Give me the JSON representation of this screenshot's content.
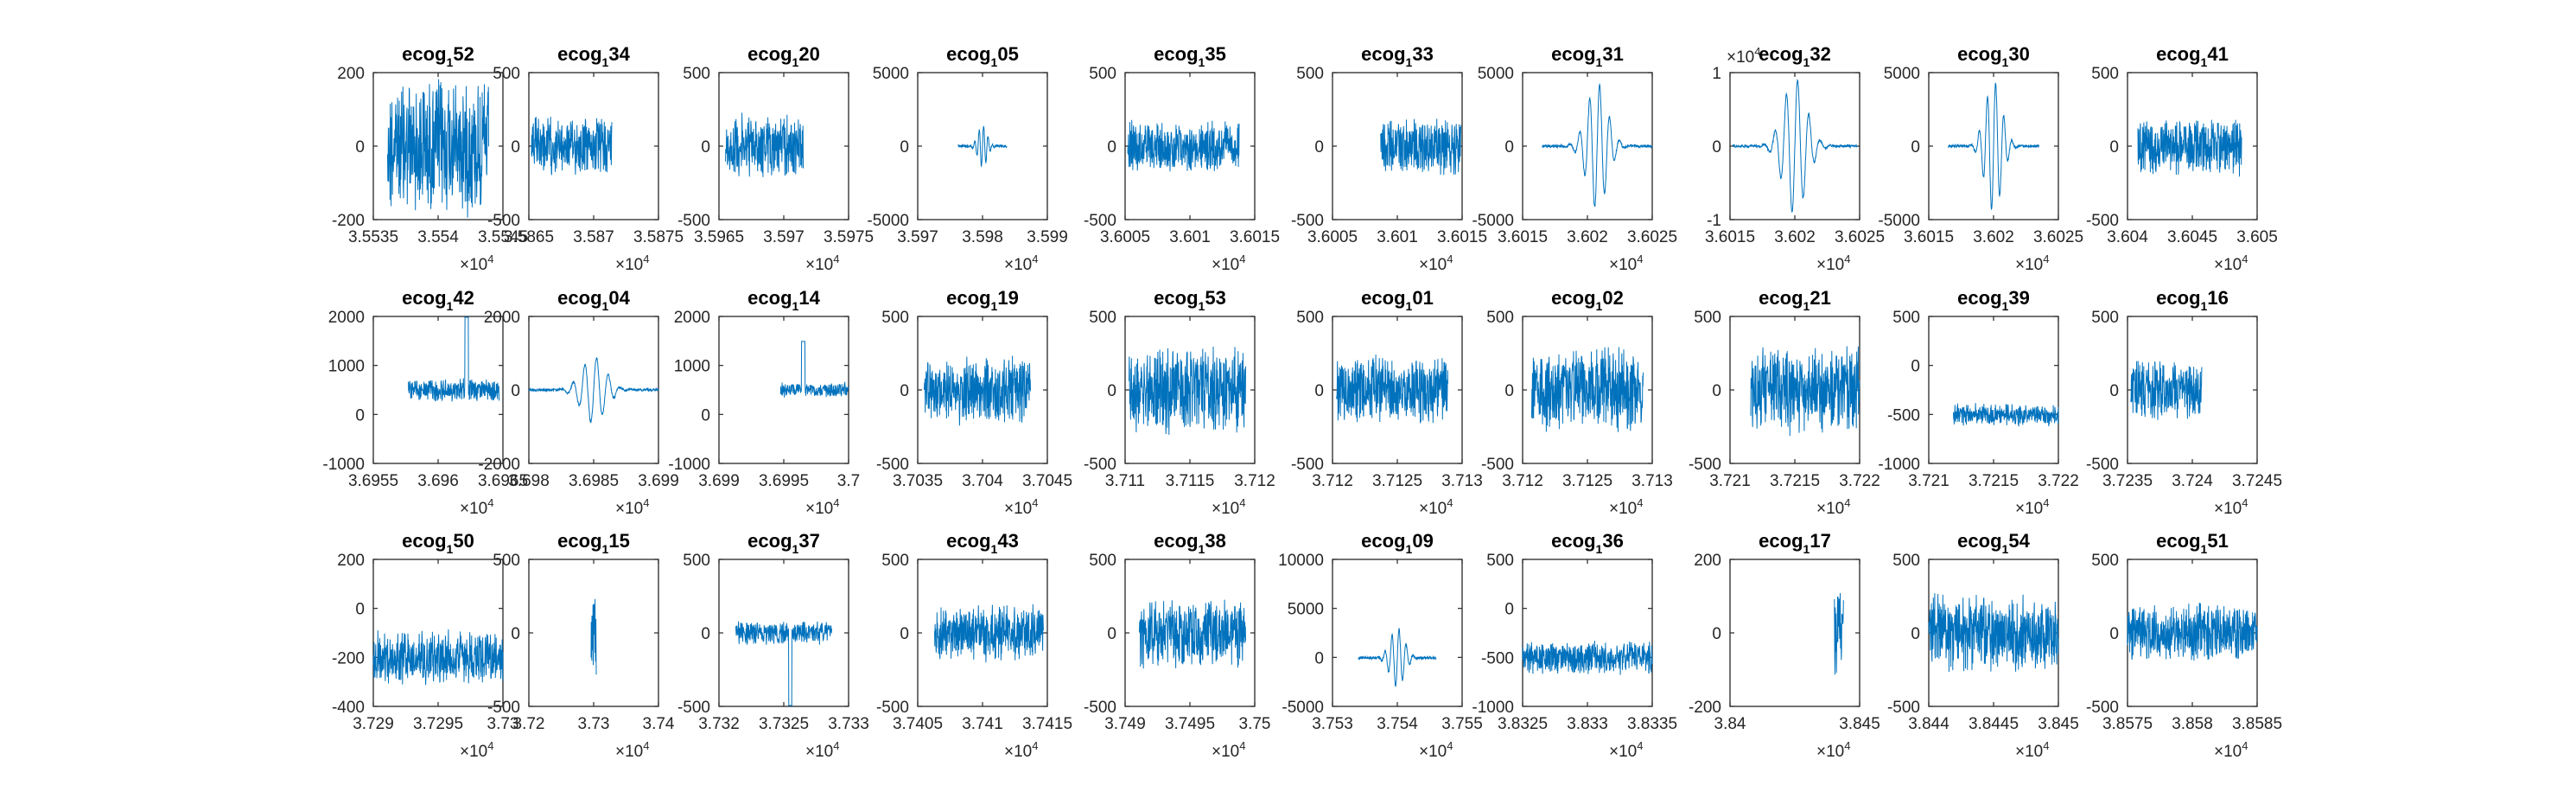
{
  "figure": {
    "background": "#ffffff",
    "axis_color": "#262626",
    "line_color": "#0072BD"
  },
  "chart_data": [
    {
      "type": "line",
      "title": "ecog",
      "title_sub": "1",
      "title_num": "52",
      "xticks": [
        "3.5535",
        "3.554",
        "3.5545"
      ],
      "yticks": [
        "200",
        "0",
        "-200"
      ],
      "ylim": [
        -200,
        200
      ],
      "x_exponent": "×10",
      "x_exp_power": "4",
      "y_exponent": "",
      "y_exp_power": "",
      "signal": {
        "center": 0.5,
        "width": 0.78,
        "amp": 0.72,
        "style": "noise"
      }
    },
    {
      "type": "line",
      "title": "ecog",
      "title_sub": "1",
      "title_num": "34",
      "xticks": [
        "3.5865",
        "3.587",
        "3.5875"
      ],
      "yticks": [
        "500",
        "0",
        "-500"
      ],
      "ylim": [
        -500,
        500
      ],
      "x_exponent": "×10",
      "x_exp_power": "4",
      "y_exponent": "",
      "y_exp_power": "",
      "signal": {
        "center": 0.33,
        "width": 0.62,
        "amp": 0.3,
        "style": "noise"
      }
    },
    {
      "type": "line",
      "title": "ecog",
      "title_sub": "1",
      "title_num": "20",
      "xticks": [
        "3.5965",
        "3.597",
        "3.5975"
      ],
      "yticks": [
        "500",
        "0",
        "-500"
      ],
      "ylim": [
        -500,
        500
      ],
      "x_exponent": "×10",
      "x_exp_power": "4",
      "y_exponent": "",
      "y_exp_power": "",
      "signal": {
        "center": 0.35,
        "width": 0.6,
        "amp": 0.33,
        "style": "noise"
      }
    },
    {
      "type": "line",
      "title": "ecog",
      "title_sub": "1",
      "title_num": "05",
      "xticks": [
        "3.597",
        "3.598",
        "3.599"
      ],
      "yticks": [
        "5000",
        "0",
        "-5000"
      ],
      "ylim": [
        -5000,
        5000
      ],
      "x_exponent": "×10",
      "x_exp_power": "4",
      "y_exponent": "",
      "y_exp_power": "",
      "signal": {
        "center": 0.5,
        "width": 0.38,
        "amp": 0.28,
        "style": "burst"
      }
    },
    {
      "type": "line",
      "title": "ecog",
      "title_sub": "1",
      "title_num": "35",
      "xticks": [
        "3.6005",
        "3.601",
        "3.6015"
      ],
      "yticks": [
        "500",
        "0",
        "-500"
      ],
      "ylim": [
        -500,
        500
      ],
      "x_exponent": "×10",
      "x_exp_power": "4",
      "y_exponent": "",
      "y_exp_power": "",
      "signal": {
        "center": 0.45,
        "width": 0.86,
        "amp": 0.27,
        "style": "noise"
      }
    },
    {
      "type": "line",
      "title": "ecog",
      "title_sub": "1",
      "title_num": "33",
      "xticks": [
        "3.6005",
        "3.601",
        "3.6015"
      ],
      "yticks": [
        "500",
        "0",
        "-500"
      ],
      "ylim": [
        -500,
        500
      ],
      "x_exponent": "×10",
      "x_exp_power": "4",
      "y_exponent": "",
      "y_exp_power": "",
      "signal": {
        "center": 0.68,
        "width": 0.62,
        "amp": 0.3,
        "style": "noise"
      }
    },
    {
      "type": "line",
      "title": "ecog",
      "title_sub": "1",
      "title_num": "31",
      "xticks": [
        "3.6015",
        "3.602",
        "3.6025"
      ],
      "yticks": [
        "5000",
        "0",
        "-5000"
      ],
      "ylim": [
        -5000,
        5000
      ],
      "x_exponent": "×10",
      "x_exp_power": "4",
      "y_exponent": "",
      "y_exp_power": "",
      "signal": {
        "center": 0.65,
        "width": 1.0,
        "amp": 0.85,
        "style": "burst"
      }
    },
    {
      "type": "line",
      "title": "ecog",
      "title_sub": "1",
      "title_num": "32",
      "xticks": [
        "3.6015",
        "3.602",
        "3.6025"
      ],
      "yticks": [
        "1",
        "0",
        "-1"
      ],
      "ylim": [
        -1,
        1
      ],
      "x_exponent": "×10",
      "x_exp_power": "4",
      "y_exponent": "×10",
      "y_exp_power": "4",
      "signal": {
        "center": 0.5,
        "width": 0.96,
        "amp": 0.92,
        "style": "burst"
      }
    },
    {
      "type": "line",
      "title": "ecog",
      "title_sub": "1",
      "title_num": "30",
      "xticks": [
        "3.6015",
        "3.602",
        "3.6025"
      ],
      "yticks": [
        "5000",
        "0",
        "-5000"
      ],
      "ylim": [
        -5000,
        5000
      ],
      "x_exponent": "×10",
      "x_exp_power": "4",
      "y_exponent": "",
      "y_exp_power": "",
      "signal": {
        "center": 0.5,
        "width": 0.7,
        "amp": 0.88,
        "style": "burst"
      }
    },
    {
      "type": "line",
      "title": "ecog",
      "title_sub": "1",
      "title_num": "41",
      "xticks": [
        "3.604",
        "3.6045",
        "3.605"
      ],
      "yticks": [
        "500",
        "0",
        "-500"
      ],
      "ylim": [
        -500,
        500
      ],
      "x_exponent": "×10",
      "x_exp_power": "4",
      "y_exponent": "",
      "y_exp_power": "",
      "signal": {
        "center": 0.48,
        "width": 0.8,
        "amp": 0.3,
        "style": "noise"
      }
    },
    {
      "type": "line",
      "title": "ecog",
      "title_sub": "1",
      "title_num": "42",
      "xticks": [
        "3.6955",
        "3.696",
        "3.6965"
      ],
      "yticks": [
        "2000",
        "1000",
        "0",
        "-1000"
      ],
      "ylim": [
        -1000,
        2000
      ],
      "x_exponent": "×10",
      "x_exp_power": "4",
      "y_exponent": "",
      "y_exp_power": "",
      "signal": {
        "center": 0.62,
        "width": 0.7,
        "amp": 0.12,
        "style": "spike",
        "spike_pos": 0.72,
        "spike_amp": 0.55
      }
    },
    {
      "type": "line",
      "title": "ecog",
      "title_sub": "1",
      "title_num": "04",
      "xticks": [
        "3.698",
        "3.6985",
        "3.699"
      ],
      "yticks": [
        "2000",
        "0",
        "-2000"
      ],
      "ylim": [
        -2000,
        2000
      ],
      "x_exponent": "×10",
      "x_exp_power": "4",
      "y_exponent": "",
      "y_exp_power": "",
      "signal": {
        "center": 0.5,
        "width": 1.0,
        "amp": 0.45,
        "style": "burst"
      }
    },
    {
      "type": "line",
      "title": "ecog",
      "title_sub": "1",
      "title_num": "14",
      "xticks": [
        "3.699",
        "3.6995",
        "3.7"
      ],
      "yticks": [
        "2000",
        "1000",
        "0",
        "-1000"
      ],
      "ylim": [
        -1000,
        2000
      ],
      "x_exponent": "×10",
      "x_exp_power": "4",
      "y_exponent": "",
      "y_exp_power": "",
      "signal": {
        "center": 0.75,
        "width": 0.55,
        "amp": 0.08,
        "style": "spike",
        "spike_pos": 0.65,
        "spike_amp": 0.33
      }
    },
    {
      "type": "line",
      "title": "ecog",
      "title_sub": "1",
      "title_num": "19",
      "xticks": [
        "3.7035",
        "3.704",
        "3.7045"
      ],
      "yticks": [
        "500",
        "0",
        "-500"
      ],
      "ylim": [
        -500,
        500
      ],
      "x_exponent": "×10",
      "x_exp_power": "4",
      "y_exponent": "",
      "y_exp_power": "",
      "signal": {
        "center": 0.46,
        "width": 0.82,
        "amp": 0.35,
        "style": "noise"
      }
    },
    {
      "type": "line",
      "title": "ecog",
      "title_sub": "1",
      "title_num": "53",
      "xticks": [
        "3.711",
        "3.7115",
        "3.712"
      ],
      "yticks": [
        "500",
        "0",
        "-500"
      ],
      "ylim": [
        -500,
        500
      ],
      "x_exponent": "×10",
      "x_exp_power": "4",
      "y_exponent": "",
      "y_exp_power": "",
      "signal": {
        "center": 0.48,
        "width": 0.9,
        "amp": 0.45,
        "style": "noise"
      }
    },
    {
      "type": "line",
      "title": "ecog",
      "title_sub": "1",
      "title_num": "01",
      "xticks": [
        "3.712",
        "3.7125",
        "3.713"
      ],
      "yticks": [
        "500",
        "0",
        "-500"
      ],
      "ylim": [
        -500,
        500
      ],
      "x_exponent": "×10",
      "x_exp_power": "4",
      "y_exponent": "",
      "y_exp_power": "",
      "signal": {
        "center": 0.46,
        "width": 0.86,
        "amp": 0.35,
        "style": "noise"
      }
    },
    {
      "type": "line",
      "title": "ecog",
      "title_sub": "1",
      "title_num": "02",
      "xticks": [
        "3.712",
        "3.7125",
        "3.713"
      ],
      "yticks": [
        "500",
        "0",
        "-500"
      ],
      "ylim": [
        -500,
        500
      ],
      "x_exponent": "×10",
      "x_exp_power": "4",
      "y_exponent": "",
      "y_exp_power": "",
      "signal": {
        "center": 0.5,
        "width": 0.86,
        "amp": 0.45,
        "style": "noise"
      }
    },
    {
      "type": "line",
      "title": "ecog",
      "title_sub": "1",
      "title_num": "21",
      "xticks": [
        "3.721",
        "3.7215",
        "3.722"
      ],
      "yticks": [
        "500",
        "0",
        "-500"
      ],
      "ylim": [
        -500,
        500
      ],
      "x_exponent": "×10",
      "x_exp_power": "4",
      "y_exponent": "",
      "y_exp_power": "",
      "signal": {
        "center": 0.58,
        "width": 0.84,
        "amp": 0.45,
        "style": "noise"
      }
    },
    {
      "type": "line",
      "title": "ecog",
      "title_sub": "1",
      "title_num": "39",
      "xticks": [
        "3.721",
        "3.7215",
        "3.722"
      ],
      "yticks": [
        "500",
        "0",
        "-500",
        "-1000"
      ],
      "ylim": [
        -1000,
        500
      ],
      "x_exponent": "×10",
      "x_exp_power": "4",
      "y_exponent": "",
      "y_exp_power": "",
      "signal": {
        "center": 0.6,
        "width": 0.82,
        "amp": 0.12,
        "style": "noise",
        "offset": 0.67
      }
    },
    {
      "type": "line",
      "title": "ecog",
      "title_sub": "1",
      "title_num": "16",
      "xticks": [
        "3.7235",
        "3.724",
        "3.7245"
      ],
      "yticks": [
        "500",
        "0",
        "-500"
      ],
      "ylim": [
        -500,
        500
      ],
      "x_exponent": "×10",
      "x_exp_power": "4",
      "y_exponent": "",
      "y_exp_power": "",
      "signal": {
        "center": 0.3,
        "width": 0.55,
        "amp": 0.3,
        "style": "noise"
      }
    },
    {
      "type": "line",
      "title": "ecog",
      "title_sub": "1",
      "title_num": "50",
      "xticks": [
        "3.729",
        "3.7295",
        "3.73"
      ],
      "yticks": [
        "200",
        "0",
        "-200",
        "-400"
      ],
      "ylim": [
        -400,
        200
      ],
      "x_exponent": "×10",
      "x_exp_power": "4",
      "y_exponent": "",
      "y_exp_power": "",
      "signal": {
        "center": 0.5,
        "width": 1.0,
        "amp": 0.28,
        "style": "noise",
        "offset": 0.67
      }
    },
    {
      "type": "line",
      "title": "ecog",
      "title_sub": "1",
      "title_num": "15",
      "xticks": [
        "3.72",
        "3.73",
        "3.74"
      ],
      "yticks": [
        "500",
        "0",
        "-500"
      ],
      "ylim": [
        -500,
        500
      ],
      "x_exponent": "×10",
      "x_exp_power": "4",
      "y_exponent": "",
      "y_exp_power": "",
      "signal": {
        "center": 0.5,
        "width": 0.04,
        "amp": 0.45,
        "style": "noise"
      }
    },
    {
      "type": "line",
      "title": "ecog",
      "title_sub": "1",
      "title_num": "37",
      "xticks": [
        "3.732",
        "3.7325",
        "3.733"
      ],
      "yticks": [
        "500",
        "0",
        "-500"
      ],
      "ylim": [
        -500,
        500
      ],
      "x_exponent": "×10",
      "x_exp_power": "4",
      "y_exponent": "",
      "y_exp_power": "",
      "signal": {
        "center": 0.5,
        "width": 0.74,
        "amp": 0.12,
        "style": "spike",
        "spike_pos": 0.55,
        "spike_amp": -0.55
      }
    },
    {
      "type": "line",
      "title": "ecog",
      "title_sub": "1",
      "title_num": "43",
      "xticks": [
        "3.7405",
        "3.741",
        "3.7415"
      ],
      "yticks": [
        "500",
        "0",
        "-500"
      ],
      "ylim": [
        -500,
        500
      ],
      "x_exponent": "×10",
      "x_exp_power": "4",
      "y_exponent": "",
      "y_exp_power": "",
      "signal": {
        "center": 0.55,
        "width": 0.84,
        "amp": 0.3,
        "style": "noise"
      }
    },
    {
      "type": "line",
      "title": "ecog",
      "title_sub": "1",
      "title_num": "38",
      "xticks": [
        "3.749",
        "3.7495",
        "3.75"
      ],
      "yticks": [
        "500",
        "0",
        "-500"
      ],
      "ylim": [
        -500,
        500
      ],
      "x_exponent": "×10",
      "x_exp_power": "4",
      "y_exponent": "",
      "y_exp_power": "",
      "signal": {
        "center": 0.52,
        "width": 0.82,
        "amp": 0.35,
        "style": "noise"
      }
    },
    {
      "type": "line",
      "title": "ecog",
      "title_sub": "1",
      "title_num": "09",
      "xticks": [
        "3.753",
        "3.754",
        "3.755"
      ],
      "yticks": [
        "10000",
        "5000",
        "0",
        "-5000"
      ],
      "ylim": [
        -5000,
        10000
      ],
      "x_exponent": "×10",
      "x_exp_power": "4",
      "y_exponent": "",
      "y_exp_power": "",
      "signal": {
        "center": 0.5,
        "width": 0.6,
        "amp": 0.4,
        "style": "burst",
        "offset": 0.67
      }
    },
    {
      "type": "line",
      "title": "ecog",
      "title_sub": "1",
      "title_num": "36",
      "xticks": [
        "3.8325",
        "3.833",
        "3.8335"
      ],
      "yticks": [
        "500",
        "0",
        "-500",
        "-1000"
      ],
      "ylim": [
        -1000,
        500
      ],
      "x_exponent": "×10",
      "x_exp_power": "4",
      "y_exponent": "",
      "y_exp_power": "",
      "signal": {
        "center": 0.5,
        "width": 1.0,
        "amp": 0.17,
        "style": "noise",
        "offset": 0.67
      }
    },
    {
      "type": "line",
      "title": "ecog",
      "title_sub": "1",
      "title_num": "17",
      "xticks": [
        "3.84",
        "3.845"
      ],
      "yticks": [
        "200",
        "0",
        "-200"
      ],
      "ylim": [
        -200,
        200
      ],
      "x_exponent": "×10",
      "x_exp_power": "4",
      "y_exponent": "",
      "y_exp_power": "",
      "signal": {
        "center": 0.84,
        "width": 0.07,
        "amp": 0.48,
        "style": "noise"
      }
    },
    {
      "type": "line",
      "title": "ecog",
      "title_sub": "1",
      "title_num": "54",
      "xticks": [
        "3.844",
        "3.8445",
        "3.845"
      ],
      "yticks": [
        "500",
        "0",
        "-500"
      ],
      "ylim": [
        -500,
        500
      ],
      "x_exponent": "×10",
      "x_exp_power": "4",
      "y_exponent": "",
      "y_exp_power": "",
      "signal": {
        "center": 0.5,
        "width": 1.0,
        "amp": 0.4,
        "style": "noise"
      }
    },
    {
      "type": "line",
      "title": "ecog",
      "title_sub": "1",
      "title_num": "51",
      "xticks": [
        "3.8575",
        "3.858",
        "3.8585"
      ],
      "yticks": [
        "500",
        "0",
        "-500"
      ],
      "ylim": [
        -500,
        500
      ],
      "x_exponent": "×10",
      "x_exp_power": "4",
      "y_exponent": "",
      "y_exp_power": "",
      "signal": {
        "center": 0.5,
        "width": 1.0,
        "amp": 0.3,
        "style": "noise"
      }
    }
  ]
}
